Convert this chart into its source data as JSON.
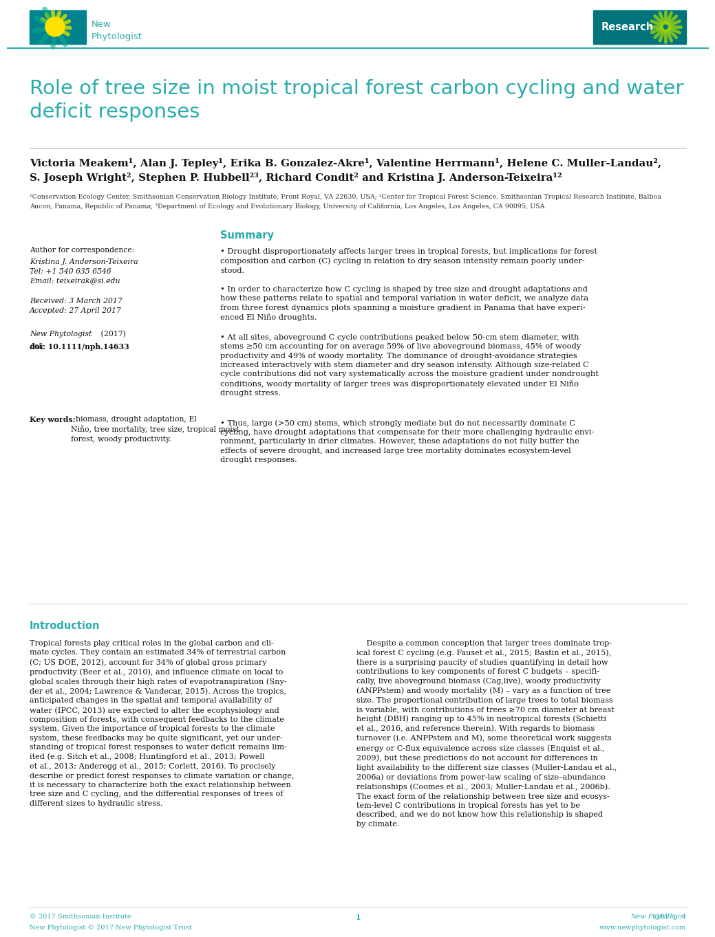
{
  "bg_color": "#FFFFFF",
  "teal": "#2AACAC",
  "dark_teal": "#1A8080",
  "title": "Role of tree size in moist tropical forest carbon cycling and water\ndeficit responses",
  "authors_line1": "Victoria Meakem¹, Alan J. Tepley¹, Erika B. Gonzalez-Akre¹, Valentine Herrmann¹, Helene C. Muller-Landau²,",
  "authors_line2": "S. Joseph Wright², Stephen P. Hubbell²³, Richard Condit² and Kristina J. Anderson-Teixeira¹²",
  "aff1": "¹Conservation Ecology Center, Smithsonian Conservation Biology Institute, Front Royal, VA 22630, USA; ²Center for Tropical Forest Science, Smithsonian Tropical Research Institute, Balboa",
  "aff2": "Ancon, Panama, Republic of Panama; ³Department of Ecology and Evolutionary Biology, University of California, Los Angeles, Los Angeles, CA 90095, USA",
  "summary_heading": "Summary",
  "b1": "• Drought disproportionately affects larger trees in tropical forests, but implications for forest\ncomposition and carbon (C) cycling in relation to dry season intensity remain poorly under-\nstood.",
  "b2": "• In order to characterize how C cycling is shaped by tree size and drought adaptations and\nhow these patterns relate to spatial and temporal variation in water deficit, we analyze data\nfrom three forest dynamics plots spanning a moisture gradient in Panama that have experi-\nenced El Niño droughts.",
  "b3": "• At all sites, aboveground C cycle contributions peaked below 50-cm stem diameter, with\nstems ≥50 cm accounting for on average 59% of live aboveground biomass, 45% of woody\nproductivity and 49% of woody mortality. The dominance of drought-avoidance strategies\nincreased interactively with stem diameter and dry season intensity. Although size-related C\ncycle contributions did not vary systematically across the moisture gradient under nondrought\nconditions, woody mortality of larger trees was disproportionately elevated under El Niño\ndrought stress.",
  "b4": "• Thus, large (>50 cm) stems, which strongly mediate but do not necessarily dominate C\ncycling, have drought adaptations that compensate for their more challenging hydraulic envi-\nronment, particularly in drier climates. However, these adaptations do not fully buffer the\neffects of severe drought, and increased large tree mortality dominates ecosystem-level\ndrought responses.",
  "corr_label": "Author for correspondence:",
  "corr_body": "Kristina J. Anderson-Teixeira\nTel: +1 540 635 6546\nEmail: teixeirak@si.edu",
  "received": "Received: 3 March 2017\nAccepted: 27 April 2017",
  "journal_line1": "New Phytologist",
  "journal_line2": " (2017)",
  "doi": "doi: 10.1111/nph.14633",
  "keywords_bold": "Key words:",
  "keywords_body": "  biomass, drought adaptation, El\nNiño, tree mortality, tree size, tropical moist\nforest, woody productivity.",
  "intro_heading": "Introduction",
  "intro_left_text": "Tropical forests play critical roles in the global carbon and cli-\nmate cycles. They contain an estimated 34% of terrestrial carbon\n(C; US DOE, 2012), account for 34% of global gross primary\nproductivity (Beer et al., 2010), and influence climate on local to\nglobal scales through their high rates of evapotranspiration (Sny-\nder et al., 2004; Lawrence & Vandecar, 2015). Across the tropics,\nanticipated changes in the spatial and temporal availability of\nwater (IPCC, 2013) are expected to alter the ecophysiology and\ncomposition of forests, with consequent feedbacks to the climate\nsystem. Given the importance of tropical forests to the climate\nsystem, these feedbacks may be quite significant, yet our under-\nstanding of tropical forest responses to water deficit remains lim-\nited (e.g. Sitch et al., 2008; Huntingford et al., 2013; Powell\net al., 2013; Anderegg et al., 2015; Corlett, 2016). To precisely\ndescribe or predict forest responses to climate variation or change,\nit is necessary to characterize both the exact relationship between\ntree size and C cycling, and the differential responses of trees of\ndifferent sizes to hydraulic stress.",
  "intro_right_text": "    Despite a common conception that larger trees dominate trop-\nical forest C cycling (e.g. Fauset et al., 2015; Bastin et al., 2015),\nthere is a surprising paucity of studies quantifying in detail how\ncontributions to key components of forest C budgets – specifi-\ncally, live aboveground biomass (Cag,live), woody productivity\n(ANPPstem) and woody mortality (M) – vary as a function of tree\nsize. The proportional contribution of large trees to total biomass\nis variable, with contributions of trees ≥70 cm diameter at breast\nheight (DBH) ranging up to 45% in neotropical forests (Schietti\net al., 2016, and reference therein). With regards to biomass\nturnover (i.e. ANPPstem and M), some theoretical work suggests\nenergy or C-flux equivalence across size classes (Enquist et al.,\n2009), but these predictions do not account for differences in\nlight availability to the different size classes (Muller-Landau et al.,\n2006a) or deviations from power-law scaling of size–abundance\nrelationships (Coomes et al., 2003; Muller-Landau et al., 2006b).\nThe exact form of the relationship between tree size and ecosys-\ntem-level C contributions in tropical forests has yet to be\ndescribed, and we do not know how this relationship is shaped\nby climate.",
  "footer_left1": "© 2017 Smithsonian Institute",
  "footer_left2": "New Phytologist © 2017 New Phytologist Trust",
  "footer_right1": "New Phytologist (2017)   1",
  "footer_right2": "www.newphytologist.com",
  "page_number": "1"
}
